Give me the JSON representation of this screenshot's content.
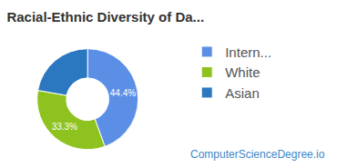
{
  "chart_data": {
    "type": "pie",
    "title": "Racial-Ethnic Diversity of Da...",
    "categories": [
      "Intern...",
      "White",
      "Asian"
    ],
    "values": [
      44.4,
      33.3,
      22.2
    ],
    "value_labels": [
      "44.4%",
      "33.3%",
      null
    ],
    "colors": [
      "#5b8fe6",
      "#8dc21f",
      "#2b78c0"
    ],
    "data_labels": true,
    "legend": "right",
    "source": "ComputerScienceDegree.io"
  }
}
